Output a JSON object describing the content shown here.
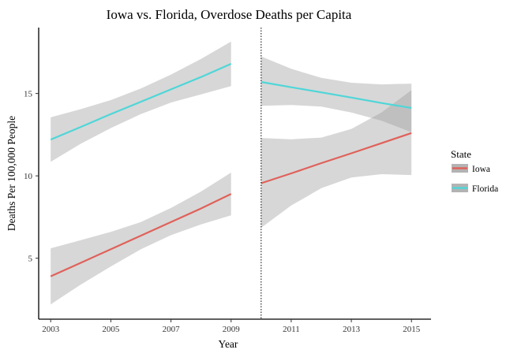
{
  "chart_data": {
    "type": "line",
    "title": "Iowa vs. Florida, Overdose Deaths per Capita",
    "xlabel": "Year",
    "ylabel": "Deaths Per 100,000 People",
    "xlim": [
      2002.6,
      2015.65
    ],
    "ylim": [
      1.3,
      19.0
    ],
    "x_ticks": [
      2003,
      2005,
      2007,
      2009,
      2011,
      2013,
      2015
    ],
    "y_ticks": [
      5,
      10,
      15
    ],
    "vline": {
      "x": 2010,
      "style": "dotted"
    },
    "grid": false,
    "legend": {
      "title": "State",
      "position": "right"
    },
    "series": [
      {
        "name": "Iowa",
        "color": "#E0615A",
        "segments": [
          {
            "x": [
              2003,
              2004,
              2005,
              2006,
              2007,
              2008,
              2009
            ],
            "y": [
              3.9,
              4.72,
              5.55,
              6.37,
              7.2,
              8.02,
              8.9
            ],
            "lower": [
              2.2,
              3.4,
              4.5,
              5.55,
              6.4,
              7.05,
              7.6
            ],
            "upper": [
              5.6,
              6.1,
              6.6,
              7.2,
              8.05,
              9.05,
              10.2
            ]
          },
          {
            "x": [
              2010,
              2011,
              2012,
              2013,
              2014,
              2015
            ],
            "y": [
              9.55,
              10.15,
              10.77,
              11.37,
              11.98,
              12.6
            ],
            "lower": [
              6.85,
              8.2,
              9.25,
              9.9,
              10.1,
              10.05
            ],
            "upper": [
              12.3,
              12.22,
              12.32,
              12.85,
              13.85,
              15.2
            ]
          }
        ]
      },
      {
        "name": "Florida",
        "color": "#4FD6D8",
        "segments": [
          {
            "x": [
              2003,
              2004,
              2005,
              2006,
              2007,
              2008,
              2009
            ],
            "y": [
              12.2,
              12.97,
              13.75,
              14.5,
              15.25,
              16.0,
              16.8
            ],
            "lower": [
              10.85,
              11.95,
              12.9,
              13.75,
              14.45,
              14.95,
              15.45
            ],
            "upper": [
              13.55,
              14.05,
              14.6,
              15.3,
              16.15,
              17.1,
              18.15
            ]
          },
          {
            "x": [
              2010,
              2011,
              2012,
              2013,
              2014,
              2015
            ],
            "y": [
              15.7,
              15.38,
              15.07,
              14.75,
              14.42,
              14.12
            ],
            "lower": [
              14.25,
              14.3,
              14.2,
              13.85,
              13.35,
              12.65
            ],
            "upper": [
              17.25,
              16.5,
              15.95,
              15.65,
              15.55,
              15.6
            ]
          }
        ]
      }
    ]
  }
}
